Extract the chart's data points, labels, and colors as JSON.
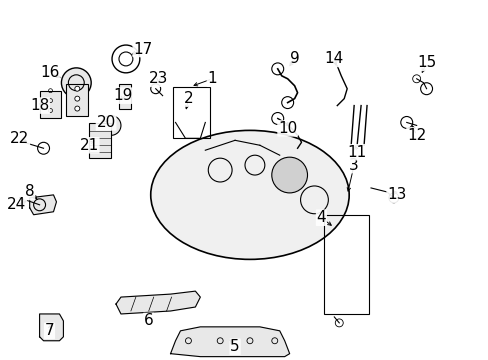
{
  "bg_color": "#ffffff",
  "line_color": "#000000",
  "font_size": 11
}
